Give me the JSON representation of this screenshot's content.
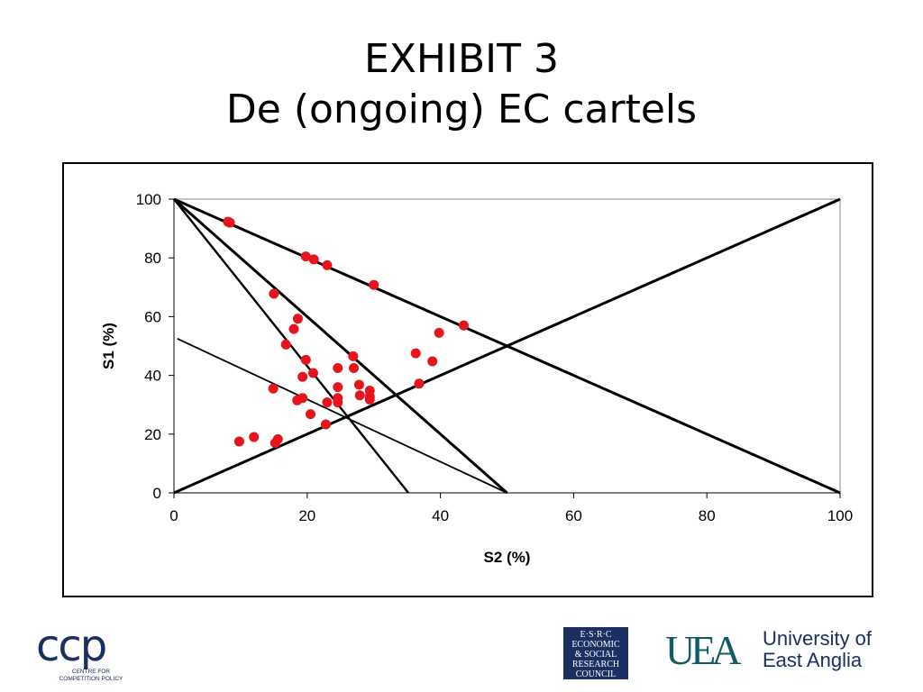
{
  "slide": {
    "title_line1": "EXHIBIT 3",
    "title_line2": "De (ongoing) EC cartels"
  },
  "chart_data": {
    "type": "scatter",
    "title": "",
    "xlabel": "S2 (%)",
    "ylabel": "S1 (%)",
    "xlim": [
      0,
      100
    ],
    "ylim": [
      0,
      100
    ],
    "xticks": [
      0,
      20,
      40,
      60,
      80,
      100
    ],
    "yticks": [
      0,
      20,
      40,
      60,
      80,
      100
    ],
    "grid": false,
    "marker_color": "#e8141c",
    "line_color": "#000000",
    "reference_lines": [
      {
        "from": [
          0,
          100
        ],
        "to": [
          100,
          0
        ],
        "weight": "heavy"
      },
      {
        "from": [
          0,
          0
        ],
        "to": [
          100,
          100
        ],
        "weight": "heavy"
      },
      {
        "from": [
          0,
          100
        ],
        "to": [
          50,
          0
        ],
        "weight": "heavy"
      },
      {
        "from": [
          0,
          100
        ],
        "to": [
          35.2,
          0
        ],
        "weight": "medium"
      },
      {
        "from": [
          0.5,
          52.5
        ],
        "to": [
          50,
          0
        ],
        "weight": "thin"
      }
    ],
    "points": [
      [
        8.1,
        92.3
      ],
      [
        8.4,
        92.0
      ],
      [
        19.8,
        80.5
      ],
      [
        21.0,
        79.5
      ],
      [
        23.0,
        77.5
      ],
      [
        30.0,
        70.8
      ],
      [
        43.5,
        57.0
      ],
      [
        39.8,
        54.5
      ],
      [
        15.0,
        67.8
      ],
      [
        18.6,
        59.3
      ],
      [
        18.0,
        55.8
      ],
      [
        16.8,
        50.5
      ],
      [
        36.3,
        47.5
      ],
      [
        38.8,
        44.8
      ],
      [
        36.8,
        37.2
      ],
      [
        26.9,
        46.5
      ],
      [
        27.0,
        42.5
      ],
      [
        24.6,
        42.5
      ],
      [
        19.8,
        45.3
      ],
      [
        20.9,
        40.8
      ],
      [
        19.3,
        39.5
      ],
      [
        14.9,
        35.5
      ],
      [
        24.6,
        36.0
      ],
      [
        27.8,
        36.8
      ],
      [
        29.4,
        34.8
      ],
      [
        27.9,
        33.2
      ],
      [
        29.4,
        32.8
      ],
      [
        29.4,
        31.8
      ],
      [
        24.6,
        32.3
      ],
      [
        24.6,
        30.8
      ],
      [
        23.0,
        30.8
      ],
      [
        19.3,
        32.3
      ],
      [
        18.5,
        31.5
      ],
      [
        20.5,
        26.8
      ],
      [
        22.8,
        23.3
      ],
      [
        12.0,
        19.0
      ],
      [
        15.6,
        18.3
      ],
      [
        15.2,
        17.0
      ],
      [
        9.8,
        17.5
      ]
    ]
  },
  "footer": {
    "ccp_logo_text": "ccp",
    "ccp_sub_line1": "CENTRE FOR",
    "ccp_sub_line2": "COMPETITION POLICY",
    "esrc_line1": "E·S·R·C",
    "esrc_line2": "ECONOMIC",
    "esrc_line3": "& SOCIAL",
    "esrc_line4": "RESEARCH",
    "esrc_line5": "COUNCIL",
    "uea_mark": "UEA",
    "uea_name_line1": "University of",
    "uea_name_line2": "East Anglia"
  }
}
